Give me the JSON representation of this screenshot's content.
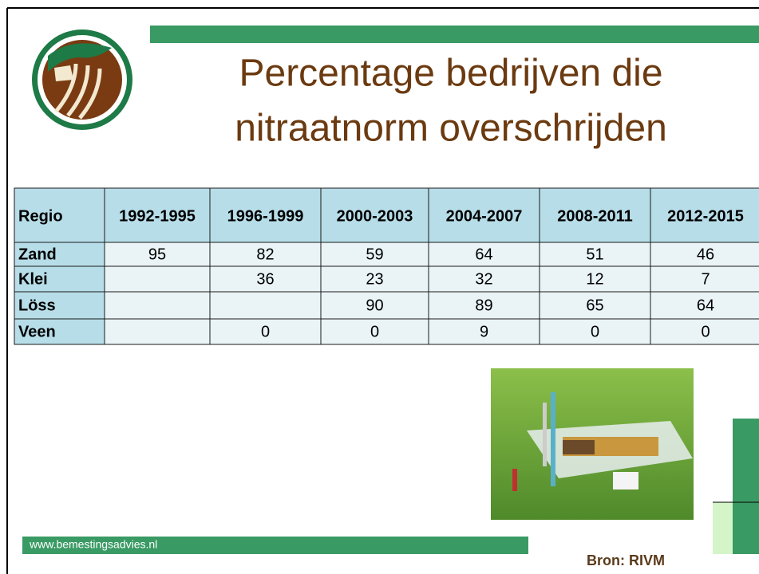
{
  "header": {
    "title_lines": [
      "Percentage bedrijven die",
      "nitraatnorm overschrijden"
    ]
  },
  "table": {
    "columns": [
      "Regio",
      "1992-1995",
      "1996-1999",
      "2000-2003",
      "2004-2007",
      "2008-2011",
      "2012-2015"
    ],
    "rows": [
      [
        "Zand",
        95,
        82,
        59,
        64,
        51,
        46
      ],
      [
        "Klei",
        null,
        36,
        23,
        32,
        12,
        7
      ],
      [
        "Löss",
        null,
        null,
        90,
        89,
        65,
        64
      ],
      [
        "Veen",
        null,
        0,
        0,
        9,
        0,
        0
      ]
    ]
  },
  "footer": {
    "url": "www.bemestingsadvies.nl",
    "source": "Bron: RIVM"
  }
}
